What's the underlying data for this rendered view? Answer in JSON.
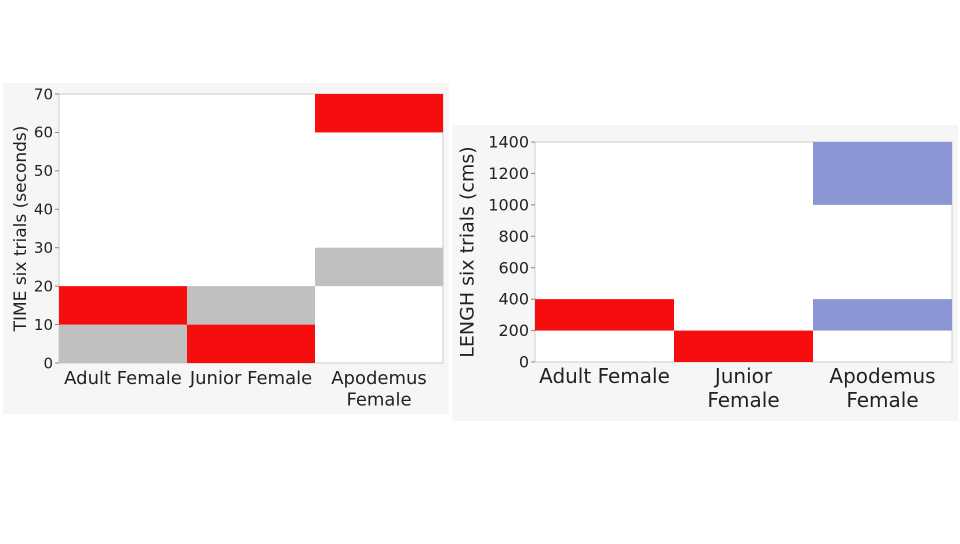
{
  "chart_data": [
    {
      "type": "range_bar",
      "y_label": "TIME six trials (seconds)",
      "categories": [
        "Adult Female",
        "Junior Female",
        "Apodemus\nFemale"
      ],
      "ranges": [
        [
          [
            0,
            10
          ],
          [
            10,
            20
          ]
        ],
        [
          [
            0,
            10
          ],
          [
            10,
            20
          ]
        ],
        [
          [
            20,
            30
          ],
          [
            60,
            70
          ]
        ]
      ],
      "range_colors": [
        [
          "#c0c0c0",
          "#f70d0d"
        ],
        [
          "#f70d0d",
          "#c0c0c0"
        ],
        [
          "#c0c0c0",
          "#f70d0d"
        ]
      ],
      "ylim": [
        0,
        70
      ],
      "yticks": [
        0,
        10,
        20,
        30,
        40,
        50,
        60,
        70
      ],
      "grid": false
    },
    {
      "type": "range_bar",
      "y_label": "LENGH six trials (cms)",
      "categories": [
        "Adult Female",
        "Junior\nFemale",
        "Apodemus\nFemale"
      ],
      "ranges": [
        [
          [
            200,
            400
          ]
        ],
        [
          [
            0,
            200
          ]
        ],
        [
          [
            200,
            400
          ],
          [
            1000,
            1400
          ]
        ]
      ],
      "range_colors": [
        [
          "#f70d0d"
        ],
        [
          "#f70d0d"
        ],
        [
          "#8d96d4",
          "#8d96d4"
        ]
      ],
      "ylim": [
        0,
        1400
      ],
      "yticks": [
        0,
        200,
        400,
        600,
        800,
        1000,
        1200,
        1400
      ],
      "grid": false
    }
  ]
}
